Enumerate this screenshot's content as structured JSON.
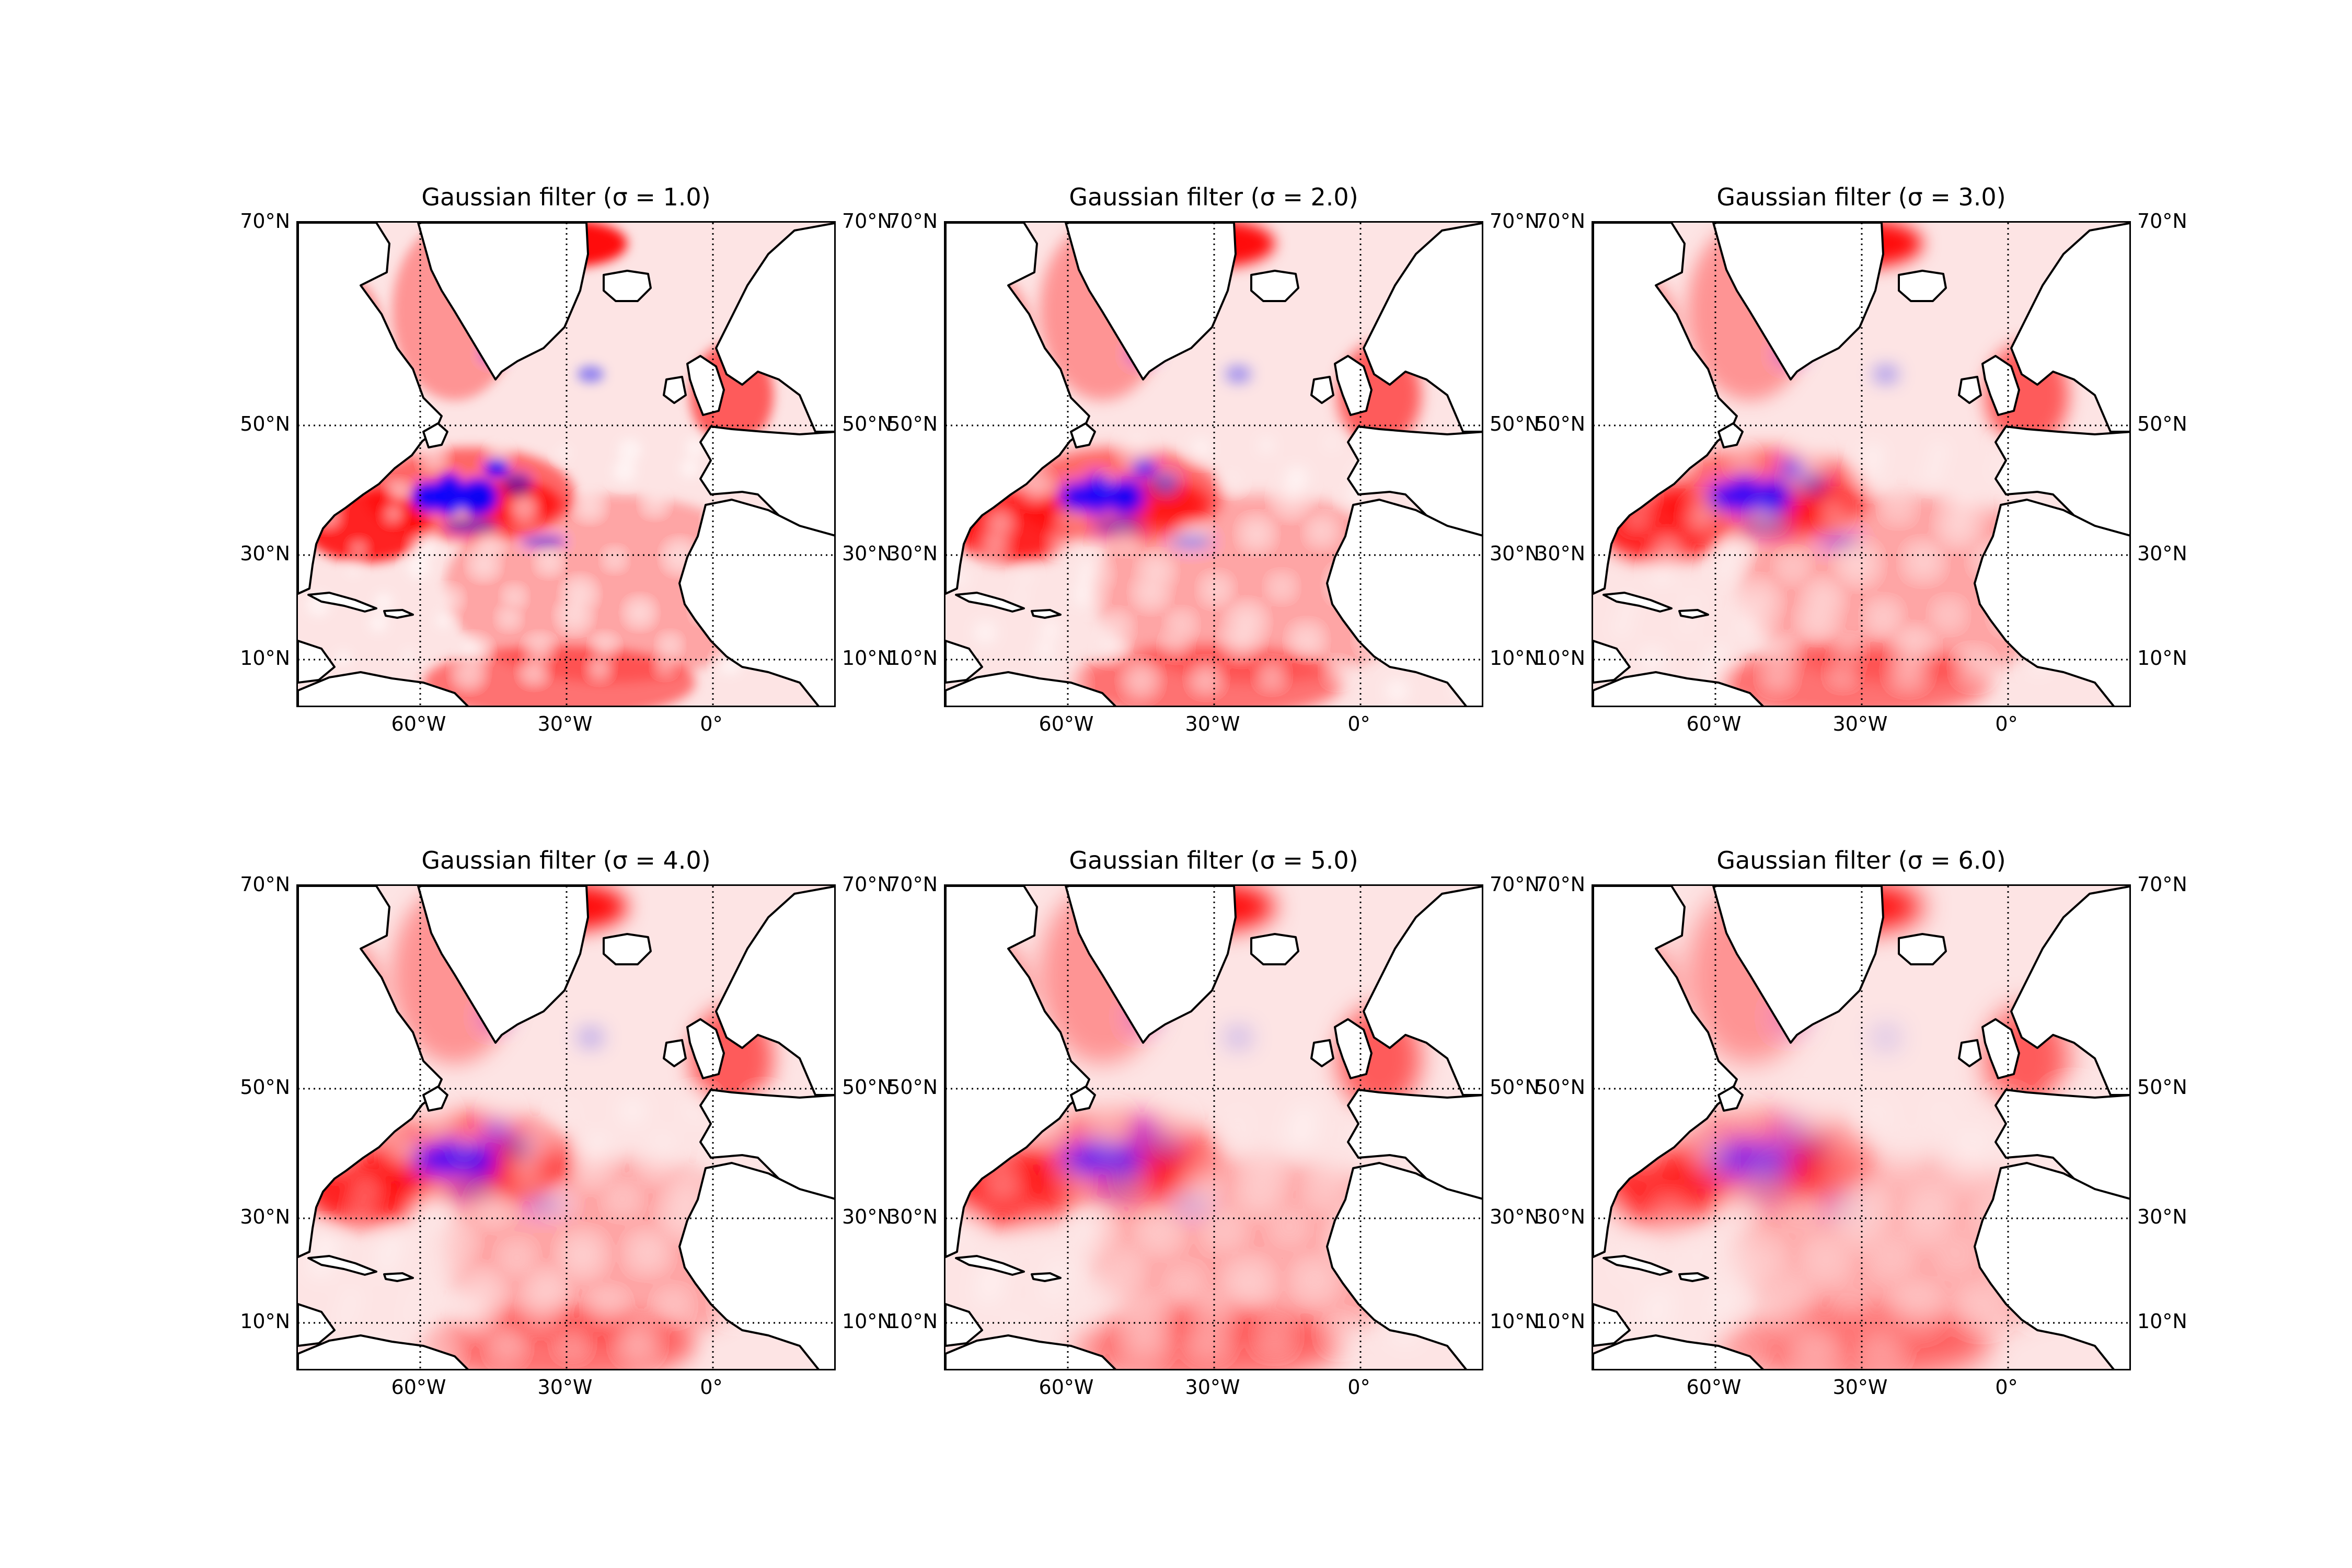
{
  "panels": [
    {
      "title": "Gaussian filter (σ = 1.0)",
      "sigma": 1.0
    },
    {
      "title": "Gaussian filter (σ = 2.0)",
      "sigma": 2.0
    },
    {
      "title": "Gaussian filter (σ = 3.0)",
      "sigma": 3.0
    },
    {
      "title": "Gaussian filter (σ = 4.0)",
      "sigma": 4.0
    },
    {
      "title": "Gaussian filter (σ = 5.0)",
      "sigma": 5.0
    },
    {
      "title": "Gaussian filter (σ = 6.0)",
      "sigma": 6.0
    }
  ],
  "map": {
    "region": "North Atlantic",
    "lon_range": [
      -85,
      25
    ],
    "lat_range": [
      0,
      70
    ],
    "parallels": [
      {
        "lat": 70,
        "label": "70°N"
      },
      {
        "lat": 50,
        "label": "50°N"
      },
      {
        "lat": 30,
        "label": "30°N"
      },
      {
        "lat": 10,
        "label": "10°N"
      }
    ],
    "meridians": [
      {
        "lon": -60,
        "label": "60°W"
      },
      {
        "lon": -30,
        "label": "30°W"
      },
      {
        "lon": 0,
        "label": "0°"
      }
    ],
    "gridline_style": "dotted",
    "colormap": "bwr",
    "colors": {
      "positive": "#ff0000",
      "negative": "#0000ff",
      "neutral": "#ffffff",
      "coastline": "#000000"
    }
  }
}
